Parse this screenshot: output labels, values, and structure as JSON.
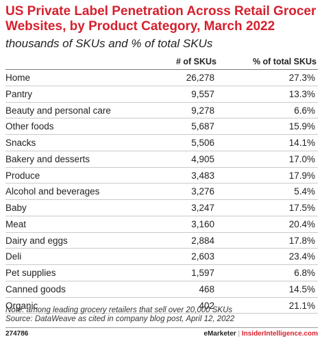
{
  "chart_data": {
    "type": "table",
    "title": "US Private Label Penetration Across Retail Grocer Websites, by Product Category, March 2022",
    "subtitle": "thousands of SKUs and % of total SKUs",
    "columns": [
      "",
      "# of SKUs",
      "% of total SKUs"
    ],
    "rows": [
      {
        "category": "Home",
        "skus": "26,278",
        "pct": "27.3%"
      },
      {
        "category": "Pantry",
        "skus": "9,557",
        "pct": "13.3%"
      },
      {
        "category": "Beauty and personal care",
        "skus": "9,278",
        "pct": "6.6%"
      },
      {
        "category": "Other foods",
        "skus": "5,687",
        "pct": "15.9%"
      },
      {
        "category": "Snacks",
        "skus": "5,506",
        "pct": "14.1%"
      },
      {
        "category": "Bakery and desserts",
        "skus": "4,905",
        "pct": "17.0%"
      },
      {
        "category": "Produce",
        "skus": "3,483",
        "pct": "17.9%"
      },
      {
        "category": "Alcohol and beverages",
        "skus": "3,276",
        "pct": "5.4%"
      },
      {
        "category": "Baby",
        "skus": "3,247",
        "pct": "17.5%"
      },
      {
        "category": "Meat",
        "skus": "3,160",
        "pct": "20.4%"
      },
      {
        "category": "Dairy and eggs",
        "skus": "2,884",
        "pct": "17.8%"
      },
      {
        "category": "Deli",
        "skus": "2,603",
        "pct": "23.4%"
      },
      {
        "category": "Pet supplies",
        "skus": "1,597",
        "pct": "6.8%"
      },
      {
        "category": "Canned goods",
        "skus": "468",
        "pct": "14.5%"
      },
      {
        "category": "Organic",
        "skus": "402",
        "pct": "21.1%"
      }
    ],
    "note": "Note: among leading grocery retailers that sell over 20,000 SKUs",
    "source": "Source: DataWeave as cited in company blog post, April 12, 2022"
  },
  "footer": {
    "chart_id": "274786",
    "brand_emarketer": "eMarketer",
    "brand_separator": "|",
    "brand_insider": "InsiderIntelligence.com"
  },
  "colors": {
    "title": "#d6202e",
    "text": "#222222",
    "rule": "#c9c9c9"
  }
}
